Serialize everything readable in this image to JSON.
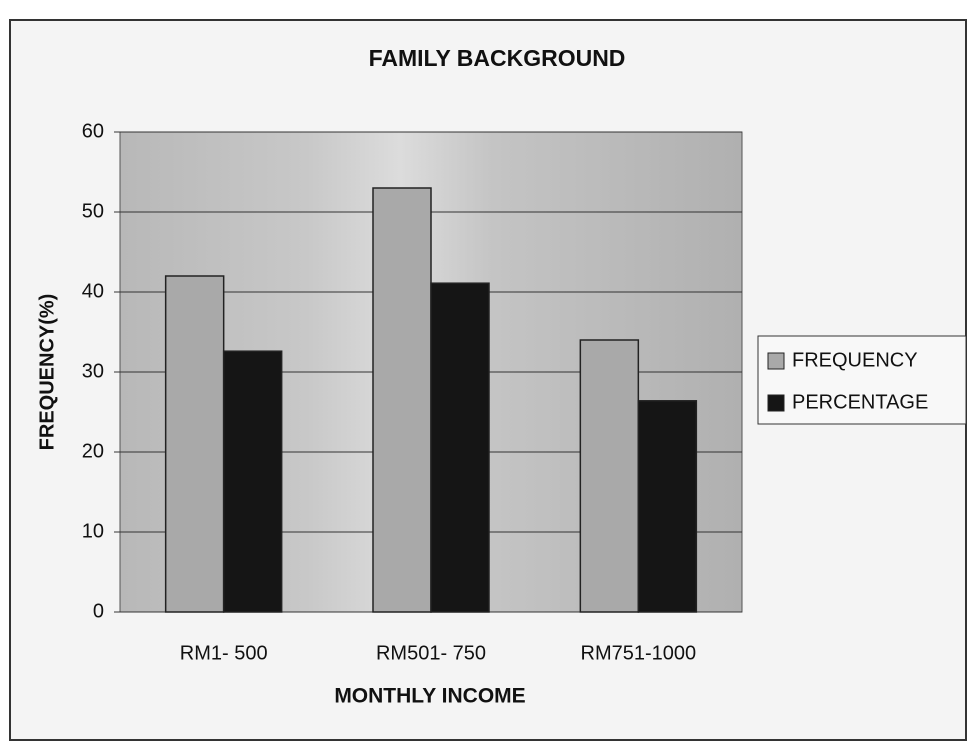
{
  "chart_data": {
    "type": "bar",
    "title": "FAMILY BACKGROUND",
    "x_label": "MONTHLY INCOME",
    "y_label": "FREQUENCY(%)",
    "categories": [
      "RM1- 500",
      "RM501- 750",
      "RM751-1000"
    ],
    "series": [
      {
        "name": "FREQUENCY",
        "color": "#a9a9a9",
        "values": [
          42,
          53,
          34
        ]
      },
      {
        "name": "PERCENTAGE",
        "color": "#151515",
        "values": [
          32.6,
          41.1,
          26.4
        ]
      }
    ],
    "ylim": [
      0,
      60
    ],
    "yticks": [
      0,
      10,
      20,
      30,
      40,
      50,
      60
    ],
    "grid": true,
    "legend": "right"
  }
}
